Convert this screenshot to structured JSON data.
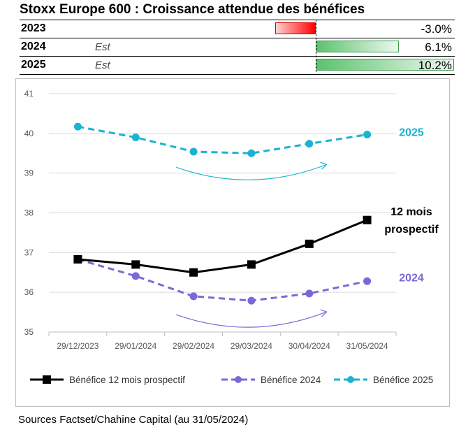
{
  "title": "Stoxx Europe 600 : Croissance attendue des bénéfices",
  "growth_table": {
    "rows": [
      {
        "year": "2023",
        "est": "",
        "value": -3.0,
        "label": "-3.0%"
      },
      {
        "year": "2024",
        "est": "Est",
        "value": 6.1,
        "label": "6.1%"
      },
      {
        "year": "2025",
        "est": "Est",
        "value": 10.2,
        "label": "10.2%"
      }
    ],
    "colors": {
      "negative": "#ff0000",
      "positive": "#5cc26e"
    }
  },
  "chart_data": {
    "type": "line",
    "categories": [
      "29/12/2023",
      "29/01/2024",
      "29/02/2024",
      "29/03/2024",
      "30/04/2024",
      "31/05/2024"
    ],
    "ylim": [
      35,
      41
    ],
    "yticks": [
      "35",
      "36",
      "37",
      "38",
      "39",
      "40",
      "41"
    ],
    "series": [
      {
        "name": "Bénéfice 12 mois prospectif",
        "values": [
          36.83,
          36.7,
          36.5,
          36.7,
          37.22,
          37.82
        ],
        "color": "#000000",
        "dashed": false,
        "marker": "square",
        "end_label": [
          "12 mois",
          "prospectif"
        ]
      },
      {
        "name": "Bénéfice 2024",
        "values": [
          36.83,
          36.41,
          35.9,
          35.79,
          35.97,
          36.28
        ],
        "color": "#7b68d8",
        "dashed": true,
        "marker": "circle",
        "end_label": [
          "2024"
        ]
      },
      {
        "name": "Bénéfice 2025",
        "values": [
          40.17,
          39.9,
          39.54,
          39.5,
          39.74,
          39.97
        ],
        "color": "#1ab3d1",
        "dashed": true,
        "marker": "circle",
        "end_label": [
          "2025"
        ]
      }
    ],
    "annotations": [
      {
        "type": "curved-arrow",
        "near": "2025 series",
        "color": "#1ab3d1"
      },
      {
        "type": "curved-arrow",
        "near": "2024 series",
        "color": "#7b68d8"
      }
    ],
    "legend": {
      "placement": "bottom"
    }
  },
  "source": "Sources Factset/Chahine Capital (au 31/05/2024)"
}
